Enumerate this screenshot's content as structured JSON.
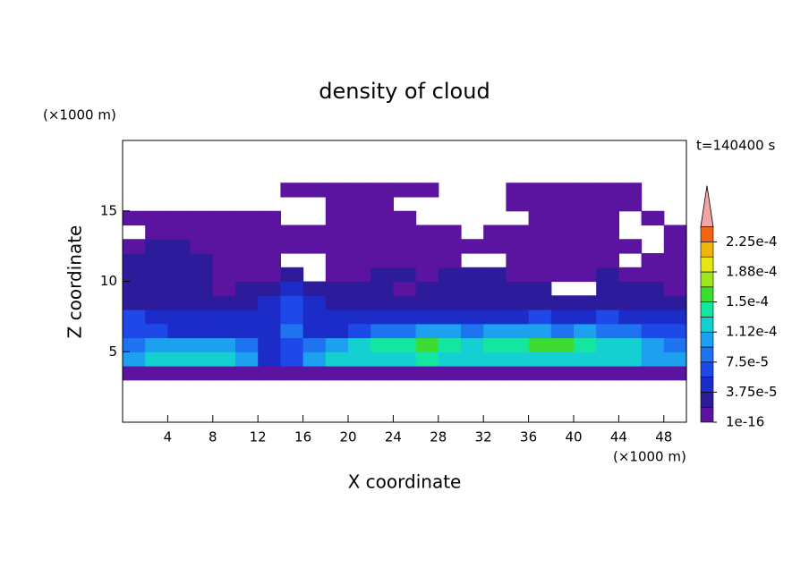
{
  "chart_data": {
    "type": "contour",
    "title": "density of cloud",
    "xlabel": "X coordinate",
    "ylabel": "Z coordinate",
    "xunit": "(×1000 m)",
    "yunit": "(×1000 m)",
    "time_label": "t=140400 s",
    "xlim": [
      0,
      50
    ],
    "ylim": [
      0,
      20
    ],
    "xticks": [
      4,
      8,
      12,
      16,
      20,
      24,
      28,
      32,
      36,
      40,
      44,
      48
    ],
    "yticks": [
      5,
      10,
      15
    ],
    "x": [
      1,
      3,
      5,
      7,
      9,
      11,
      13,
      15,
      17,
      19,
      21,
      23,
      25,
      27,
      29,
      31,
      33,
      35,
      37,
      39,
      41,
      43,
      45,
      47,
      49
    ],
    "y": [
      3.5,
      4.5,
      5.5,
      6.5,
      7.5,
      8.5,
      9.5,
      10.5,
      11.5,
      12.5,
      13.5,
      14.5,
      15.5,
      16.5
    ],
    "z": [
      [
        1e-05,
        1e-05,
        1e-05,
        1e-05,
        1e-05,
        1e-05,
        1e-05,
        1e-05,
        1e-05,
        1e-05,
        1e-05,
        1e-05,
        1e-05,
        1e-05,
        1e-05,
        1e-05,
        1e-05,
        1e-05,
        1e-05,
        1e-05,
        1e-05,
        1e-05,
        1e-05,
        1e-05,
        1e-05
      ],
      [
        0.0001,
        0.00012,
        0.00012,
        0.00012,
        0.00012,
        0.0001,
        4.5e-05,
        6.5e-05,
        0.0001,
        0.00012,
        0.00012,
        0.00012,
        0.00012,
        0.00014,
        0.00012,
        0.00012,
        0.00012,
        0.00012,
        0.00012,
        0.00012,
        0.00012,
        0.00012,
        0.00012,
        0.0001,
        0.0001
      ],
      [
        8.5e-05,
        0.0001,
        0.0001,
        0.0001,
        0.0001,
        8.5e-05,
        4.5e-05,
        6.5e-05,
        8.5e-05,
        0.0001,
        0.00012,
        0.00014,
        0.00014,
        0.00016,
        0.00014,
        0.00012,
        0.00014,
        0.00014,
        0.00016,
        0.00016,
        0.00014,
        0.00012,
        0.00012,
        0.0001,
        8.5e-05
      ],
      [
        6.5e-05,
        6.5e-05,
        4.5e-05,
        4.5e-05,
        4.5e-05,
        4.5e-05,
        4.5e-05,
        8.5e-05,
        4.5e-05,
        4.5e-05,
        6.5e-05,
        8.5e-05,
        8.5e-05,
        0.0001,
        0.0001,
        8.5e-05,
        0.0001,
        0.0001,
        0.0001,
        8.5e-05,
        0.0001,
        8.5e-05,
        8.5e-05,
        6.5e-05,
        6.5e-05
      ],
      [
        6.5e-05,
        4.5e-05,
        4.5e-05,
        4.5e-05,
        4.5e-05,
        4.5e-05,
        4.5e-05,
        6.5e-05,
        4.5e-05,
        4.5e-05,
        4.5e-05,
        4.5e-05,
        4.5e-05,
        4.5e-05,
        4.5e-05,
        4.5e-05,
        4.5e-05,
        4.5e-05,
        6.5e-05,
        4.5e-05,
        4.5e-05,
        6.5e-05,
        4.5e-05,
        4.5e-05,
        4.5e-05
      ],
      [
        2.5e-05,
        2.5e-05,
        2.5e-05,
        2.5e-05,
        2.5e-05,
        2.5e-05,
        4.5e-05,
        6.5e-05,
        4.5e-05,
        2.5e-05,
        2.5e-05,
        2.5e-05,
        2.5e-05,
        2.5e-05,
        2.5e-05,
        2.5e-05,
        2.5e-05,
        2.5e-05,
        2.5e-05,
        2.5e-05,
        2.5e-05,
        2.5e-05,
        2.5e-05,
        2.5e-05,
        2.5e-05
      ],
      [
        2.5e-05,
        2.5e-05,
        2.5e-05,
        2.5e-05,
        1e-05,
        2.5e-05,
        2.5e-05,
        4.5e-05,
        2.5e-05,
        2.5e-05,
        2.5e-05,
        2.5e-05,
        1e-05,
        2.5e-05,
        2.5e-05,
        2.5e-05,
        2.5e-05,
        2.5e-05,
        2.5e-05,
        null,
        null,
        2.5e-05,
        2.5e-05,
        2.5e-05,
        1e-05
      ],
      [
        2.5e-05,
        2.5e-05,
        2.5e-05,
        2.5e-05,
        1e-05,
        1e-05,
        1e-05,
        2.5e-05,
        null,
        1e-05,
        1e-05,
        2.5e-05,
        2.5e-05,
        1e-05,
        2.5e-05,
        2.5e-05,
        2.5e-05,
        1e-05,
        1e-05,
        1e-05,
        1e-05,
        2.5e-05,
        1e-05,
        1e-05,
        1e-05
      ],
      [
        2.5e-05,
        2.5e-05,
        2.5e-05,
        2.5e-05,
        1e-05,
        1e-05,
        1e-05,
        null,
        null,
        1e-05,
        1e-05,
        1e-05,
        1e-05,
        1e-05,
        1e-05,
        null,
        null,
        1e-05,
        1e-05,
        1e-05,
        1e-05,
        1e-05,
        null,
        1e-05,
        1e-05
      ],
      [
        1e-05,
        2.5e-05,
        2.5e-05,
        1e-05,
        1e-05,
        1e-05,
        1e-05,
        1e-05,
        1e-05,
        1e-05,
        1e-05,
        1e-05,
        1e-05,
        1e-05,
        1e-05,
        1e-05,
        1e-05,
        1e-05,
        1e-05,
        1e-05,
        1e-05,
        1e-05,
        1e-05,
        null,
        1e-05
      ],
      [
        null,
        1e-05,
        1e-05,
        1e-05,
        1e-05,
        1e-05,
        1e-05,
        1e-05,
        1e-05,
        1e-05,
        1e-05,
        1e-05,
        1e-05,
        1e-05,
        1e-05,
        null,
        1e-05,
        1e-05,
        1e-05,
        1e-05,
        1e-05,
        1e-05,
        null,
        null,
        1e-05
      ],
      [
        1e-05,
        1e-05,
        1e-05,
        1e-05,
        1e-05,
        1e-05,
        1e-05,
        null,
        null,
        1e-05,
        1e-05,
        1e-05,
        1e-05,
        null,
        null,
        null,
        null,
        null,
        1e-05,
        1e-05,
        1e-05,
        1e-05,
        null,
        1e-05,
        null
      ],
      [
        null,
        null,
        null,
        null,
        null,
        null,
        null,
        null,
        null,
        1e-05,
        1e-05,
        1e-05,
        null,
        null,
        null,
        null,
        null,
        1e-05,
        1e-05,
        1e-05,
        1e-05,
        1e-05,
        1e-05,
        null,
        null
      ],
      [
        null,
        null,
        null,
        null,
        null,
        null,
        null,
        1e-05,
        1e-05,
        1e-05,
        1e-05,
        1e-05,
        1e-05,
        1e-05,
        null,
        null,
        null,
        1e-05,
        1e-05,
        1e-05,
        1e-05,
        1e-05,
        1e-05,
        null,
        null
      ]
    ],
    "colorbar": {
      "levels": [
        1e-16,
        1.875e-05,
        3.75e-05,
        5.625e-05,
        7.5e-05,
        9.375e-05,
        0.0001125,
        0.00013125,
        0.00015,
        0.00016875,
        0.0001875,
        0.00020625,
        0.000225,
        0.00024375
      ],
      "colors": [
        "#5a14a0",
        "#2c1c9c",
        "#1c2cc8",
        "#1e48e8",
        "#1e74f0",
        "#1ea0f0",
        "#14d0d0",
        "#14e6a0",
        "#3cdc32",
        "#a0e61e",
        "#e6e614",
        "#f0b40a",
        "#f06414"
      ],
      "extend_color": "#f4a4a4",
      "ticks": [
        {
          "value": 1e-16,
          "label": "1e-16"
        },
        {
          "value": 3.75e-05,
          "label": "3.75e-5"
        },
        {
          "value": 7.5e-05,
          "label": "7.5e-5"
        },
        {
          "value": 0.0001125,
          "label": "1.12e-4"
        },
        {
          "value": 0.00015,
          "label": "1.5e-4"
        },
        {
          "value": 0.0001875,
          "label": "1.88e-4"
        },
        {
          "value": 0.000225,
          "label": "2.25e-4"
        }
      ]
    }
  }
}
